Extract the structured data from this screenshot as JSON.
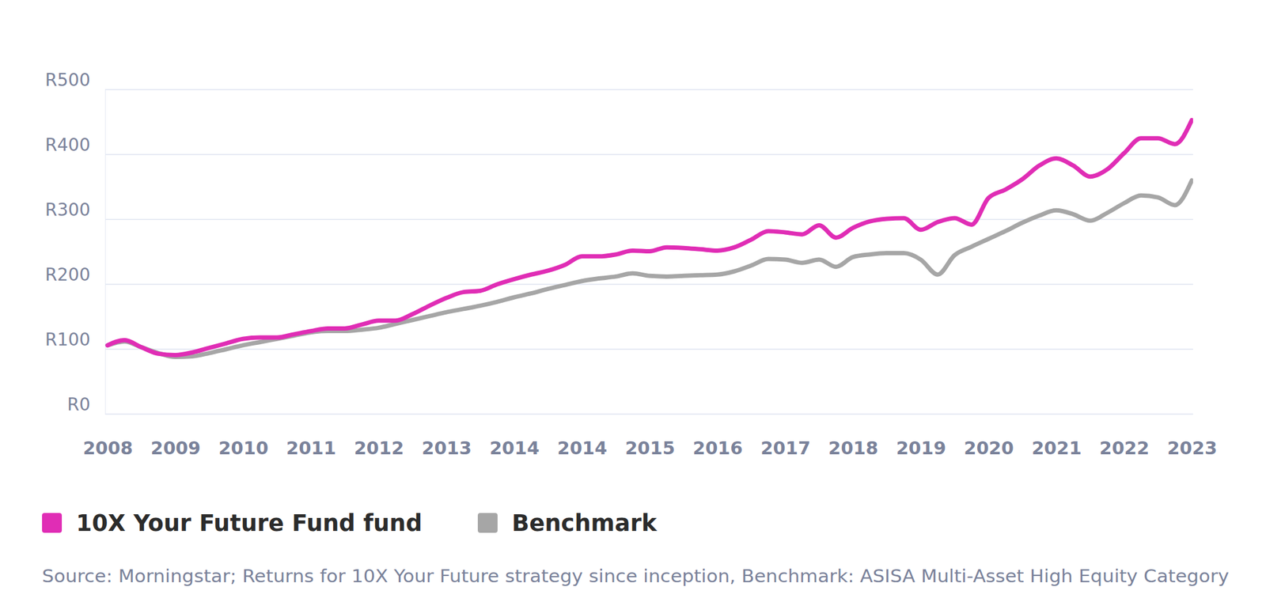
{
  "chart_data": {
    "type": "line",
    "categories": [
      "2008",
      null,
      null,
      null,
      "2009",
      null,
      null,
      null,
      "2010",
      null,
      null,
      null,
      "2011",
      null,
      null,
      null,
      "2012",
      null,
      null,
      null,
      "2013",
      null,
      null,
      null,
      "2014",
      null,
      null,
      null,
      "2014",
      null,
      null,
      null,
      "2015",
      null,
      null,
      null,
      "2016",
      null,
      null,
      null,
      "2017",
      null,
      null,
      null,
      "2018",
      null,
      null,
      null,
      "2019",
      null,
      null,
      null,
      "2020",
      null,
      null,
      null,
      "2021",
      null,
      null,
      null,
      "2022",
      null,
      null,
      null,
      "2023"
    ],
    "series": [
      {
        "name": "10X Your Future Fund fund",
        "color": "#e02db5",
        "values": [
          106,
          114,
          103,
          93,
          91,
          95,
          102,
          109,
          116,
          118,
          118,
          123,
          128,
          132,
          132,
          138,
          144,
          144,
          154,
          167,
          179,
          188,
          190,
          200,
          208,
          215,
          221,
          230,
          243,
          243,
          246,
          252,
          251,
          257,
          256,
          254,
          252,
          257,
          269,
          282,
          280,
          277,
          291,
          272,
          287,
          297,
          301,
          302,
          284,
          296,
          302,
          292,
          333,
          346,
          362,
          383,
          394,
          383,
          366,
          377,
          402,
          425,
          425,
          416,
          453
        ]
      },
      {
        "name": "Benchmark",
        "color": "#a6a6a6",
        "values": [
          106,
          112,
          103,
          94,
          88,
          89,
          94,
          100,
          106,
          111,
          116,
          121,
          126,
          128,
          128,
          130,
          133,
          139,
          145,
          151,
          157,
          162,
          167,
          173,
          180,
          186,
          193,
          199,
          205,
          209,
          212,
          217,
          213,
          212,
          213,
          214,
          215,
          220,
          229,
          239,
          238,
          233,
          238,
          227,
          242,
          246,
          248,
          248,
          238,
          215,
          245,
          258,
          270,
          282,
          295,
          306,
          314,
          308,
          298,
          310,
          325,
          337,
          334,
          322,
          360
        ]
      }
    ],
    "ylim": [
      0,
      500
    ],
    "yticks": [
      {
        "value": 0,
        "label": "R0"
      },
      {
        "value": 100,
        "label": "R100"
      },
      {
        "value": 200,
        "label": "R200"
      },
      {
        "value": 300,
        "label": "R300"
      },
      {
        "value": 400,
        "label": "R400"
      },
      {
        "value": 500,
        "label": "R500"
      }
    ],
    "grid": true,
    "legend": "bottom-left",
    "source": "Source: Morningstar; Returns for 10X Your Future strategy since inception, Benchmark: ASISA Multi-Asset High Equity Category"
  }
}
